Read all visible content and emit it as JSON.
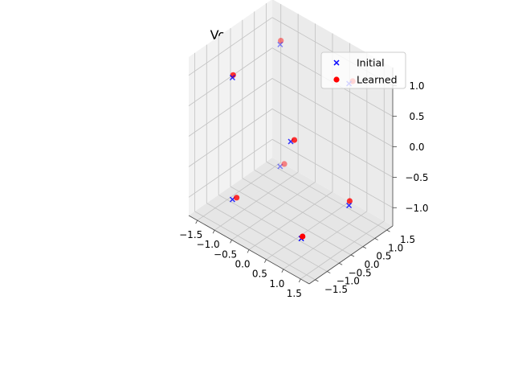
{
  "chart_data": {
    "type": "scatter",
    "projection": "3d",
    "title": "Voronoi partition",
    "xlabel": "",
    "ylabel": "",
    "zlabel": "",
    "xlim": [
      -1.75,
      1.75
    ],
    "ylim": [
      -1.75,
      1.75
    ],
    "zlim": [
      -1.3,
      1.3
    ],
    "x_ticks": [
      -1.5,
      -1.0,
      -0.5,
      0.0,
      0.5,
      1.0,
      1.5
    ],
    "y_ticks": [
      -1.5,
      -1.0,
      -0.5,
      0.0,
      0.5,
      1.0,
      1.5
    ],
    "z_ticks": [
      -1.0,
      -0.5,
      0.0,
      0.5,
      1.0
    ],
    "x_tick_labels": [
      "−1.5",
      "−1.0",
      "−0.5",
      "0.0",
      "0.5",
      "1.0",
      "1.5"
    ],
    "y_tick_labels": [
      "−1.5",
      "−1.0",
      "−0.5",
      "0.0",
      "0.5",
      "1.0",
      "1.5"
    ],
    "z_tick_labels": [
      "−1.0",
      "−0.5",
      "0.0",
      "0.5",
      "1.0"
    ],
    "grid": true,
    "legend": "top-right",
    "series": [
      {
        "name": "Initial",
        "marker": "x",
        "color": "#0000ff",
        "points": [
          {
            "x": 1.0,
            "y": -1.0,
            "z": -1.0
          },
          {
            "x": -1.0,
            "y": -1.0,
            "z": -1.0
          },
          {
            "x": -1.0,
            "y": -1.0,
            "z": 1.0
          },
          {
            "x": 1.0,
            "y": 1.0,
            "z": -1.0
          },
          {
            "x": -1.0,
            "y": 1.0,
            "z": 1.0
          },
          {
            "x": 1.0,
            "y": 1.0,
            "z": 1.0
          },
          {
            "x": -1.0,
            "y": 1.0,
            "z": -1.0
          },
          {
            "x": 0.0,
            "y": 0.0,
            "z": 0.0
          }
        ]
      },
      {
        "name": "Learned",
        "marker": "o",
        "color": "#ff0000",
        "points": [
          {
            "x": 1.0,
            "y": -1.05,
            "z": -0.98
          },
          {
            "x": -0.95,
            "y": -1.0,
            "z": -0.98
          },
          {
            "x": -1.05,
            "y": -1.0,
            "z": 1.0
          },
          {
            "x": 0.95,
            "y": 1.0,
            "z": -0.97
          },
          {
            "x": -1.05,
            "y": 1.0,
            "z": 1.02
          },
          {
            "x": 1.0,
            "y": 1.05,
            "z": 1.0
          },
          {
            "x": -0.95,
            "y": 1.0,
            "z": -0.97
          },
          {
            "x": 0.02,
            "y": 0.02,
            "z": 0.0
          }
        ]
      }
    ]
  }
}
